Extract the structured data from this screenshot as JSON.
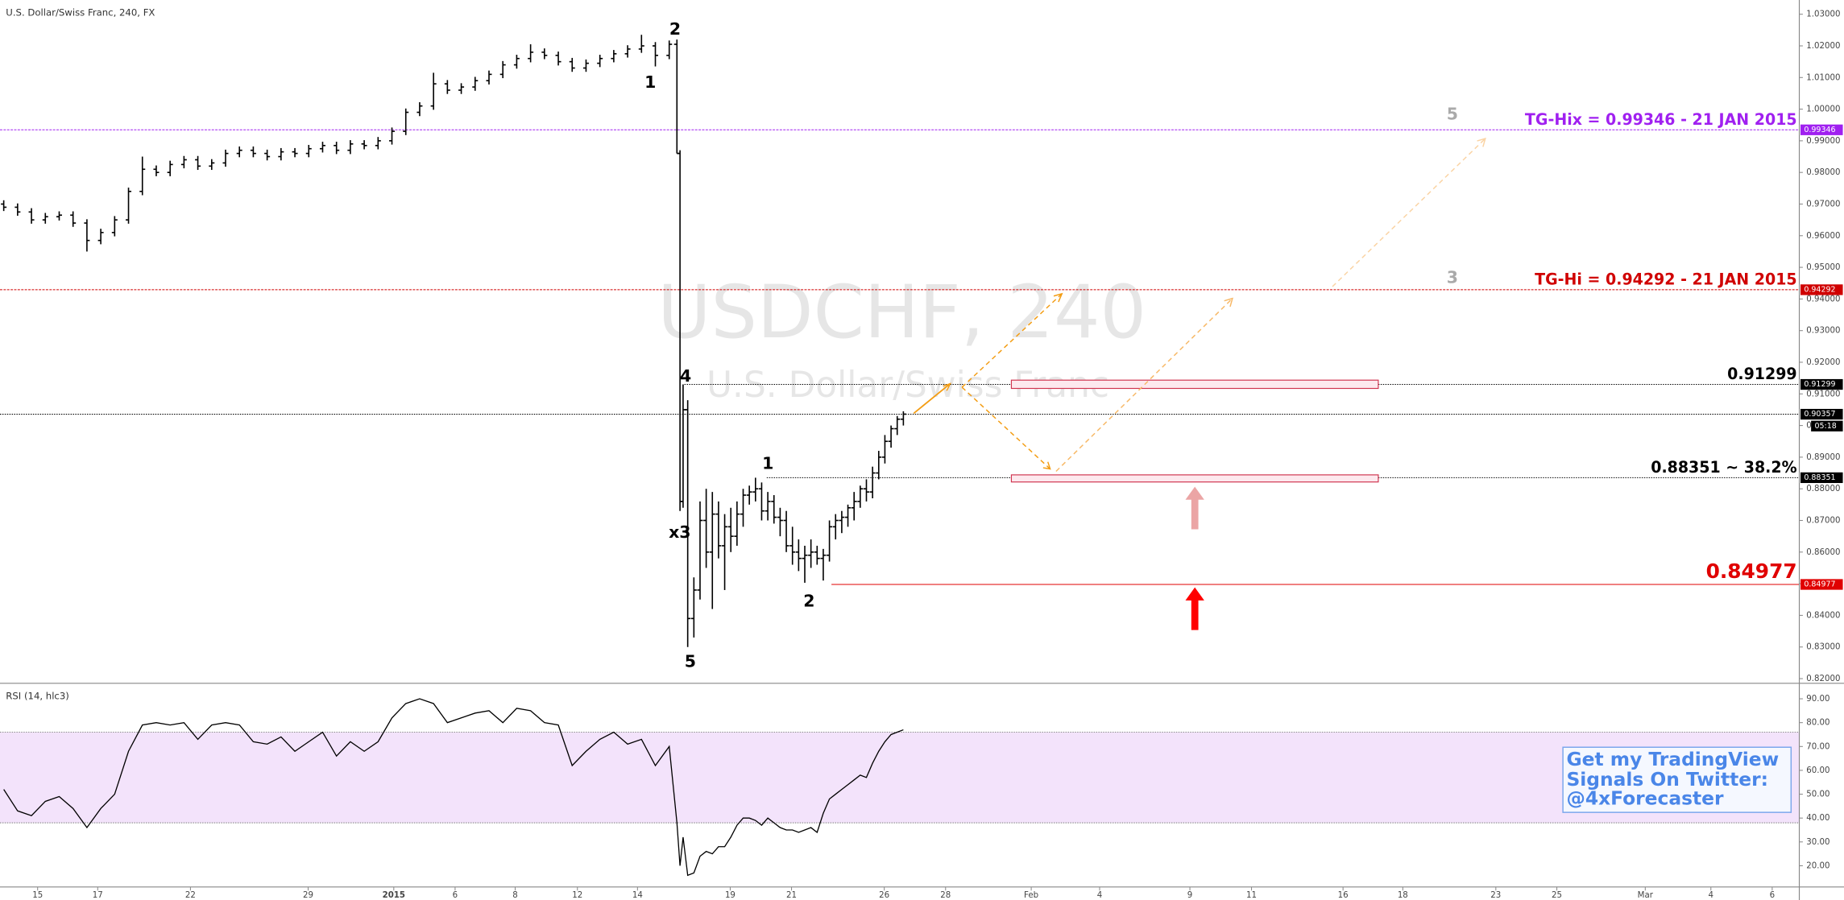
{
  "title": "U.S. Dollar/Swiss Franc, 240, FX",
  "watermark": {
    "symbol": "USDCHF, 240",
    "description": "U.S. Dollar/Swiss Franc"
  },
  "promo": [
    "Get my TradingView",
    "Signals On Twitter:",
    "@4xForecaster"
  ],
  "chart_data": [
    {
      "type": "ohlc",
      "color": "#000000",
      "xlim": [
        -1.2214,
        57.18
      ],
      "ylim": [
        0.8189,
        1.0345
      ],
      "xticks": [
        {
          "value": 0,
          "label": "15"
        },
        {
          "value": 1.95,
          "label": "17"
        },
        {
          "value": 4.96,
          "label": "22"
        },
        {
          "value": 8.78,
          "label": "29"
        },
        {
          "value": 11.56,
          "label": "2015"
        },
        {
          "value": 13.55,
          "label": "6"
        },
        {
          "value": 15.5,
          "label": "8"
        },
        {
          "value": 17.52,
          "label": "12"
        },
        {
          "value": 19.47,
          "label": "14"
        },
        {
          "value": 22.48,
          "label": "19"
        },
        {
          "value": 24.47,
          "label": "21"
        },
        {
          "value": 27.48,
          "label": "26"
        },
        {
          "value": 29.47,
          "label": "28"
        },
        {
          "value": 32.25,
          "label": "Feb"
        },
        {
          "value": 34.47,
          "label": "4"
        },
        {
          "value": 37.4,
          "label": "9"
        },
        {
          "value": 39.4,
          "label": "11"
        },
        {
          "value": 42.37,
          "label": "16"
        },
        {
          "value": 44.31,
          "label": "18"
        },
        {
          "value": 47.33,
          "label": "23"
        },
        {
          "value": 49.31,
          "label": "25"
        },
        {
          "value": 52.18,
          "label": "Mar"
        },
        {
          "value": 54.31,
          "label": "4"
        },
        {
          "value": 56.3,
          "label": "6"
        }
      ],
      "yticks": [
        {
          "value": 0.82,
          "label": "0.82000"
        },
        {
          "value": 0.83,
          "label": "0.83000"
        },
        {
          "value": 0.84,
          "label": "0.84000"
        },
        {
          "value": 0.85,
          "label": "0.85000"
        },
        {
          "value": 0.86,
          "label": "0.86000"
        },
        {
          "value": 0.87,
          "label": "0.87000"
        },
        {
          "value": 0.88,
          "label": "0.88000"
        },
        {
          "value": 0.89,
          "label": "0.89000"
        },
        {
          "value": 0.9,
          "label": "0.90000"
        },
        {
          "value": 0.91,
          "label": "0.91000"
        },
        {
          "value": 0.92,
          "label": "0.92000"
        },
        {
          "value": 0.93,
          "label": "0.93000"
        },
        {
          "value": 0.94,
          "label": "0.94000"
        },
        {
          "value": 0.95,
          "label": "0.95000"
        },
        {
          "value": 0.96,
          "label": "0.96000"
        },
        {
          "value": 0.97,
          "label": "0.97000"
        },
        {
          "value": 0.98,
          "label": "0.98000"
        },
        {
          "value": 0.99,
          "label": "0.99000"
        },
        {
          "value": 1.0,
          "label": "1.00000"
        },
        {
          "value": 1.01,
          "label": "1.01000"
        },
        {
          "value": 1.02,
          "label": "1.02000"
        },
        {
          "value": 1.03,
          "label": "1.03000"
        }
      ],
      "levels": [
        {
          "value": 0.99346,
          "text": "TG-Hix = 0.99346 - 21 JAN 2015",
          "color": "#a020f0"
        },
        {
          "value": 0.94292,
          "text": "TG-Hi = 0.94292 - 21 JAN 2015",
          "color": "#d00000"
        },
        {
          "value": 0.91299,
          "text": "0.91299",
          "color": "#000000"
        },
        {
          "value": 0.90357,
          "countdown": "05:18",
          "color": "#000000"
        },
        {
          "value": 0.88351,
          "text": "0.88351 ~ 38.2%",
          "color": "#000000"
        },
        {
          "value": 0.84977,
          "text": "0.84977",
          "color": "#e00000"
        }
      ],
      "wave_labels": [
        "2",
        "1",
        "4",
        "x3",
        "5",
        "1",
        "2",
        "5",
        "3"
      ],
      "bars": [
        {
          "x": -1.1,
          "open": 0.97,
          "high": 0.9712,
          "low": 0.9678,
          "close": 0.969
        },
        {
          "x": -0.65,
          "open": 0.969,
          "high": 0.9702,
          "low": 0.9663,
          "close": 0.9675
        },
        {
          "x": -0.2,
          "open": 0.9675,
          "high": 0.9687,
          "low": 0.9638,
          "close": 0.965
        },
        {
          "x": 0.25,
          "open": 0.965,
          "high": 0.9672,
          "low": 0.9638,
          "close": 0.966
        },
        {
          "x": 0.7,
          "open": 0.966,
          "high": 0.9677,
          "low": 0.9648,
          "close": 0.9665
        },
        {
          "x": 1.15,
          "open": 0.9665,
          "high": 0.9677,
          "low": 0.9628,
          "close": 0.964
        },
        {
          "x": 1.6,
          "open": 0.964,
          "high": 0.9652,
          "low": 0.955,
          "close": 0.9585
        },
        {
          "x": 2.05,
          "open": 0.9585,
          "high": 0.9622,
          "low": 0.9573,
          "close": 0.961
        },
        {
          "x": 2.5,
          "open": 0.961,
          "high": 0.9662,
          "low": 0.9598,
          "close": 0.965
        },
        {
          "x": 2.95,
          "open": 0.965,
          "high": 0.9752,
          "low": 0.9638,
          "close": 0.974
        },
        {
          "x": 3.4,
          "open": 0.974,
          "high": 0.985,
          "low": 0.9728,
          "close": 0.981
        },
        {
          "x": 3.85,
          "open": 0.981,
          "high": 0.9822,
          "low": 0.9788,
          "close": 0.98
        },
        {
          "x": 4.3,
          "open": 0.98,
          "high": 0.9837,
          "low": 0.9788,
          "close": 0.9825
        },
        {
          "x": 4.75,
          "open": 0.9825,
          "high": 0.9852,
          "low": 0.9813,
          "close": 0.984
        },
        {
          "x": 5.2,
          "open": 0.984,
          "high": 0.9852,
          "low": 0.9808,
          "close": 0.982
        },
        {
          "x": 5.65,
          "open": 0.982,
          "high": 0.9842,
          "low": 0.9808,
          "close": 0.983
        },
        {
          "x": 6.1,
          "open": 0.983,
          "high": 0.9872,
          "low": 0.9818,
          "close": 0.986
        },
        {
          "x": 6.55,
          "open": 0.986,
          "high": 0.9882,
          "low": 0.9848,
          "close": 0.987
        },
        {
          "x": 7.0,
          "open": 0.987,
          "high": 0.9882,
          "low": 0.9848,
          "close": 0.986
        },
        {
          "x": 7.45,
          "open": 0.986,
          "high": 0.9872,
          "low": 0.9838,
          "close": 0.985
        },
        {
          "x": 7.9,
          "open": 0.985,
          "high": 0.9877,
          "low": 0.9838,
          "close": 0.9865
        },
        {
          "x": 8.35,
          "open": 0.9865,
          "high": 0.9877,
          "low": 0.9848,
          "close": 0.986
        },
        {
          "x": 8.8,
          "open": 0.986,
          "high": 0.9887,
          "low": 0.9848,
          "close": 0.9875
        },
        {
          "x": 9.25,
          "open": 0.9875,
          "high": 0.9897,
          "low": 0.9863,
          "close": 0.9885
        },
        {
          "x": 9.7,
          "open": 0.9885,
          "high": 0.9897,
          "low": 0.9858,
          "close": 0.987
        },
        {
          "x": 10.15,
          "open": 0.987,
          "high": 0.9902,
          "low": 0.9858,
          "close": 0.989
        },
        {
          "x": 10.6,
          "open": 0.989,
          "high": 0.9902,
          "low": 0.9873,
          "close": 0.9885
        },
        {
          "x": 11.05,
          "open": 0.9885,
          "high": 0.9912,
          "low": 0.9873,
          "close": 0.99
        },
        {
          "x": 11.5,
          "open": 0.99,
          "high": 0.9942,
          "low": 0.9888,
          "close": 0.993
        },
        {
          "x": 11.95,
          "open": 0.993,
          "high": 1.0002,
          "low": 0.9918,
          "close": 0.999
        },
        {
          "x": 12.4,
          "open": 0.999,
          "high": 1.0022,
          "low": 0.9978,
          "close": 1.001
        },
        {
          "x": 12.85,
          "open": 1.001,
          "high": 1.0115,
          "low": 0.9998,
          "close": 1.008
        },
        {
          "x": 13.3,
          "open": 1.008,
          "high": 1.0092,
          "low": 1.0048,
          "close": 1.006
        },
        {
          "x": 13.75,
          "open": 1.006,
          "high": 1.0082,
          "low": 1.0048,
          "close": 1.007
        },
        {
          "x": 14.2,
          "open": 1.007,
          "high": 1.0102,
          "low": 1.0058,
          "close": 1.009
        },
        {
          "x": 14.65,
          "open": 1.009,
          "high": 1.0122,
          "low": 1.0078,
          "close": 1.011
        },
        {
          "x": 15.1,
          "open": 1.011,
          "high": 1.0152,
          "low": 1.0098,
          "close": 1.014
        },
        {
          "x": 15.55,
          "open": 1.014,
          "high": 1.0172,
          "low": 1.0128,
          "close": 1.016
        },
        {
          "x": 16.0,
          "open": 1.016,
          "high": 1.0205,
          "low": 1.0148,
          "close": 1.018
        },
        {
          "x": 16.45,
          "open": 1.018,
          "high": 1.0192,
          "low": 1.0158,
          "close": 1.017
        },
        {
          "x": 16.9,
          "open": 1.017,
          "high": 1.0182,
          "low": 1.0138,
          "close": 1.015
        },
        {
          "x": 17.35,
          "open": 1.015,
          "high": 1.0162,
          "low": 1.0118,
          "close": 1.013
        },
        {
          "x": 17.8,
          "open": 1.013,
          "high": 1.0157,
          "low": 1.0118,
          "close": 1.0145
        },
        {
          "x": 18.25,
          "open": 1.0145,
          "high": 1.0172,
          "low": 1.0133,
          "close": 1.016
        },
        {
          "x": 18.7,
          "open": 1.016,
          "high": 1.0187,
          "low": 1.0148,
          "close": 1.0175
        },
        {
          "x": 19.15,
          "open": 1.0175,
          "high": 1.0202,
          "low": 1.0163,
          "close": 1.019
        },
        {
          "x": 19.6,
          "open": 1.019,
          "high": 1.0235,
          "low": 1.0178,
          "close": 1.02
        },
        {
          "x": 20.05,
          "open": 1.02,
          "high": 1.0212,
          "low": 1.0135,
          "close": 1.017
        },
        {
          "x": 20.5,
          "open": 1.017,
          "high": 1.0217,
          "low": 1.0158,
          "close": 1.0205
        },
        {
          "x": 20.75,
          "open": 1.0205,
          "high": 1.022,
          "low": 0.986,
          "close": 0.986
        },
        {
          "x": 20.85,
          "open": 0.986,
          "high": 0.987,
          "low": 0.873,
          "close": 0.876
        },
        {
          "x": 20.95,
          "open": 0.876,
          "high": 0.913,
          "low": 0.874,
          "close": 0.905
        },
        {
          "x": 21.1,
          "open": 0.905,
          "high": 0.908,
          "low": 0.83,
          "close": 0.839
        },
        {
          "x": 21.3,
          "open": 0.839,
          "high": 0.852,
          "low": 0.833,
          "close": 0.848
        },
        {
          "x": 21.5,
          "open": 0.848,
          "high": 0.876,
          "low": 0.845,
          "close": 0.87
        },
        {
          "x": 21.7,
          "open": 0.87,
          "high": 0.88,
          "low": 0.855,
          "close": 0.86
        },
        {
          "x": 21.9,
          "open": 0.86,
          "high": 0.879,
          "low": 0.842,
          "close": 0.872
        },
        {
          "x": 22.1,
          "open": 0.872,
          "high": 0.876,
          "low": 0.858,
          "close": 0.862
        },
        {
          "x": 22.3,
          "open": 0.862,
          "high": 0.872,
          "low": 0.848,
          "close": 0.868
        },
        {
          "x": 22.5,
          "open": 0.868,
          "high": 0.874,
          "low": 0.86,
          "close": 0.865
        },
        {
          "x": 22.7,
          "open": 0.865,
          "high": 0.876,
          "low": 0.862,
          "close": 0.872
        },
        {
          "x": 22.9,
          "open": 0.872,
          "high": 0.88,
          "low": 0.868,
          "close": 0.878
        },
        {
          "x": 23.1,
          "open": 0.878,
          "high": 0.881,
          "low": 0.875,
          "close": 0.879
        },
        {
          "x": 23.3,
          "open": 0.879,
          "high": 0.8835,
          "low": 0.876,
          "close": 0.88
        },
        {
          "x": 23.5,
          "open": 0.88,
          "high": 0.882,
          "low": 0.87,
          "close": 0.873
        },
        {
          "x": 23.7,
          "open": 0.873,
          "high": 0.879,
          "low": 0.87,
          "close": 0.876
        },
        {
          "x": 23.9,
          "open": 0.876,
          "high": 0.878,
          "low": 0.869,
          "close": 0.871
        },
        {
          "x": 24.1,
          "open": 0.871,
          "high": 0.874,
          "low": 0.865,
          "close": 0.87
        },
        {
          "x": 24.3,
          "open": 0.87,
          "high": 0.873,
          "low": 0.86,
          "close": 0.862
        },
        {
          "x": 24.5,
          "open": 0.862,
          "high": 0.868,
          "low": 0.856,
          "close": 0.86
        },
        {
          "x": 24.7,
          "open": 0.86,
          "high": 0.864,
          "low": 0.854,
          "close": 0.858
        },
        {
          "x": 24.9,
          "open": 0.858,
          "high": 0.862,
          "low": 0.8503,
          "close": 0.859
        },
        {
          "x": 25.1,
          "open": 0.859,
          "high": 0.864,
          "low": 0.855,
          "close": 0.86
        },
        {
          "x": 25.3,
          "open": 0.86,
          "high": 0.862,
          "low": 0.856,
          "close": 0.858
        },
        {
          "x": 25.5,
          "open": 0.858,
          "high": 0.861,
          "low": 0.851,
          "close": 0.859
        },
        {
          "x": 25.7,
          "open": 0.859,
          "high": 0.87,
          "low": 0.857,
          "close": 0.868
        },
        {
          "x": 25.9,
          "open": 0.868,
          "high": 0.872,
          "low": 0.864,
          "close": 0.87
        },
        {
          "x": 26.1,
          "open": 0.87,
          "high": 0.873,
          "low": 0.866,
          "close": 0.871
        },
        {
          "x": 26.3,
          "open": 0.871,
          "high": 0.875,
          "low": 0.868,
          "close": 0.874
        },
        {
          "x": 26.5,
          "open": 0.874,
          "high": 0.879,
          "low": 0.87,
          "close": 0.876
        },
        {
          "x": 26.7,
          "open": 0.876,
          "high": 0.881,
          "low": 0.874,
          "close": 0.88
        },
        {
          "x": 26.9,
          "open": 0.88,
          "high": 0.883,
          "low": 0.876,
          "close": 0.879
        },
        {
          "x": 27.1,
          "open": 0.879,
          "high": 0.887,
          "low": 0.877,
          "close": 0.885
        },
        {
          "x": 27.3,
          "open": 0.885,
          "high": 0.892,
          "low": 0.883,
          "close": 0.89
        },
        {
          "x": 27.5,
          "open": 0.89,
          "high": 0.897,
          "low": 0.888,
          "close": 0.895
        },
        {
          "x": 27.7,
          "open": 0.895,
          "high": 0.9,
          "low": 0.893,
          "close": 0.899
        },
        {
          "x": 27.9,
          "open": 0.899,
          "high": 0.903,
          "low": 0.897,
          "close": 0.902
        },
        {
          "x": 28.1,
          "open": 0.902,
          "high": 0.9045,
          "low": 0.9,
          "close": 0.9036
        }
      ]
    },
    {
      "type": "line",
      "title": "RSI (14, hlc3)",
      "color": "#000000",
      "band_color": "#f3e3fb",
      "ylim": [
        11.6,
        96
      ],
      "bands": [
        38,
        76
      ],
      "yticks": [
        {
          "value": 20,
          "label": "20.00"
        },
        {
          "value": 30,
          "label": "30.00"
        },
        {
          "value": 40,
          "label": "40.00"
        },
        {
          "value": 50,
          "label": "50.00"
        },
        {
          "value": 60,
          "label": "60.00"
        },
        {
          "value": 70,
          "label": "70.00"
        },
        {
          "value": 80,
          "label": "80.00"
        },
        {
          "value": 90,
          "label": "90.00"
        }
      ],
      "values": [
        52,
        43,
        41,
        47,
        49,
        44,
        36,
        44,
        50,
        68,
        79,
        80,
        79,
        80,
        73,
        79,
        80,
        79,
        72,
        71,
        74,
        68,
        72,
        76,
        66,
        72,
        68,
        72,
        82,
        88,
        90,
        88,
        80,
        82,
        84,
        85,
        80,
        86,
        85,
        80,
        79,
        62,
        68,
        73,
        76,
        71,
        73,
        62,
        70,
        38,
        20,
        32,
        16,
        17,
        24,
        26,
        25,
        28,
        28,
        32,
        37,
        40,
        40,
        39,
        37,
        40,
        38,
        36,
        35,
        35,
        34,
        35,
        36,
        34,
        42,
        48,
        50,
        52,
        54,
        56,
        58,
        57,
        63,
        68,
        72,
        75,
        76,
        77
      ]
    }
  ]
}
